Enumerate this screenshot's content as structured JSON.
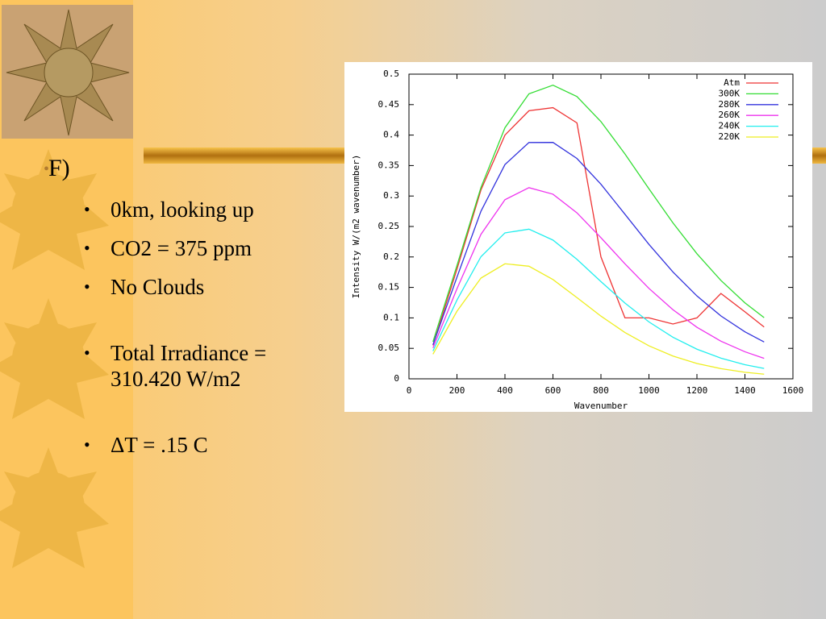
{
  "slide": {
    "heading": "F)",
    "bullets": [
      "0km, looking up",
      "CO2 = 375 ppm",
      "No Clouds",
      "Total Irradiance = 310.420 W/m2",
      "ΔT = .15 C"
    ]
  },
  "chart_data": {
    "type": "line",
    "x_label": "Wavenumber",
    "y_label": "Intensity W/(m2 wavenumber)",
    "x": [
      100,
      200,
      300,
      400,
      500,
      600,
      700,
      800,
      900,
      1000,
      1100,
      1200,
      1300,
      1400,
      1480
    ],
    "xlim": [
      0,
      1600
    ],
    "ylim": [
      0,
      0.5
    ],
    "xticks": [
      0,
      200,
      400,
      600,
      800,
      1000,
      1200,
      1400,
      1600
    ],
    "yticks": [
      0,
      0.05,
      0.1,
      0.15,
      0.2,
      0.25,
      0.3,
      0.35,
      0.4,
      0.45,
      0.5
    ],
    "grid": false,
    "legend": "upper right",
    "series": [
      {
        "name": "Atm",
        "color": "#ee3333",
        "values": [
          0.055,
          0.18,
          0.31,
          0.4,
          0.44,
          0.445,
          0.42,
          0.2,
          0.1,
          0.1,
          0.09,
          0.1,
          0.14,
          0.11,
          0.085
        ]
      },
      {
        "name": "300K",
        "color": "#33dd33",
        "values": [
          0.0608,
          0.186,
          0.3141,
          0.4121,
          0.4677,
          0.4819,
          0.4632,
          0.4221,
          0.3691,
          0.3118,
          0.2559,
          0.2053,
          0.1614,
          0.1247,
          0.1003
        ]
      },
      {
        "name": "280K",
        "color": "#3333dd",
        "values": [
          0.0557,
          0.1668,
          0.2751,
          0.3516,
          0.3878,
          0.388,
          0.3616,
          0.3193,
          0.2701,
          0.2207,
          0.1754,
          0.136,
          0.1032,
          0.0771,
          0.0604
        ]
      },
      {
        "name": "260K",
        "color": "#ee33ee",
        "values": [
          0.0506,
          0.1478,
          0.2371,
          0.2939,
          0.3137,
          0.303,
          0.2724,
          0.2316,
          0.1888,
          0.1484,
          0.1134,
          0.0846,
          0.0617,
          0.0444,
          0.0336
        ]
      },
      {
        "name": "240K",
        "color": "#22eeee",
        "values": [
          0.0456,
          0.1292,
          0.2004,
          0.2395,
          0.2456,
          0.2277,
          0.1961,
          0.1596,
          0.1243,
          0.0934,
          0.0682,
          0.0486,
          0.0339,
          0.0232,
          0.017
        ]
      },
      {
        "name": "220K",
        "color": "#eeee22",
        "values": [
          0.0405,
          0.1109,
          0.1653,
          0.1888,
          0.1848,
          0.1629,
          0.1333,
          0.1029,
          0.076,
          0.0541,
          0.0374,
          0.0252,
          0.0167,
          0.0108,
          0.0076
        ]
      }
    ]
  }
}
